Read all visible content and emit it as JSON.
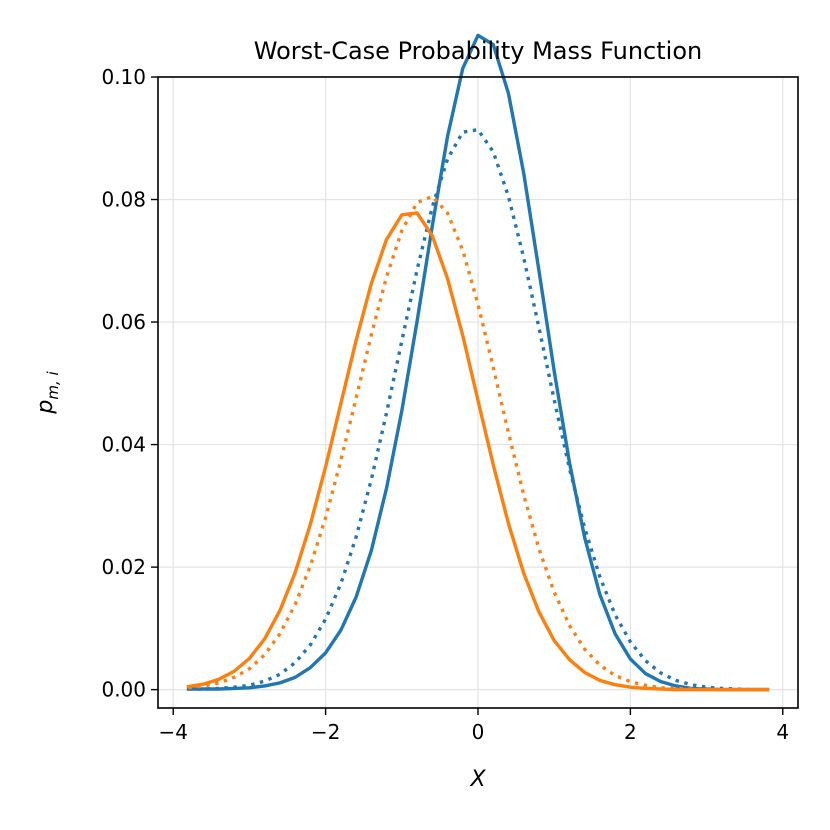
{
  "chart_data": {
    "type": "line",
    "title": "Worst-Case Probability Mass Function",
    "xlabel": "X",
    "ylabel": "p",
    "ylabel_subscript": "m, i",
    "xlim": [
      -4.2,
      4.2
    ],
    "ylim": [
      -0.003,
      0.1
    ],
    "xticks": [
      -4,
      -2,
      0,
      2,
      4
    ],
    "xtick_labels": [
      "−4",
      "−2",
      "0",
      "2",
      "4"
    ],
    "yticks": [
      0.0,
      0.02,
      0.04,
      0.06,
      0.08,
      0.1
    ],
    "ytick_labels": [
      "0.00",
      "0.02",
      "0.04",
      "0.06",
      "0.08",
      "0.10"
    ],
    "grid": true,
    "x": [
      -3.8,
      -3.6,
      -3.4,
      -3.2,
      -3.0,
      -2.8,
      -2.6,
      -2.4,
      -2.2,
      -2.0,
      -1.8,
      -1.6,
      -1.4,
      -1.2,
      -1.0,
      -0.8,
      -0.6,
      -0.4,
      -0.2,
      0.0,
      0.2,
      0.4,
      0.6,
      0.8,
      1.0,
      1.2,
      1.4,
      1.6,
      1.8,
      2.0,
      2.2,
      2.4,
      2.6,
      2.8,
      3.0,
      3.2,
      3.4,
      3.6,
      3.8
    ],
    "series": [
      {
        "name": "blue solid",
        "color": "#1f77b4",
        "style": "solid",
        "values": [
          0.0001,
          0.0001,
          0.0001,
          0.0002,
          0.0003,
          0.0006,
          0.0011,
          0.002,
          0.0036,
          0.006,
          0.0097,
          0.0151,
          0.0227,
          0.0329,
          0.0455,
          0.0601,
          0.0757,
          0.0903,
          0.1014,
          0.1068,
          0.1053,
          0.0973,
          0.0843,
          0.0684,
          0.052,
          0.0371,
          0.0248,
          0.0155,
          0.0091,
          0.005,
          0.0026,
          0.0013,
          0.0006,
          0.0002,
          0.0001,
          0.0,
          0.0,
          0.0,
          0.0
        ]
      },
      {
        "name": "blue dotted",
        "color": "#1f77b4",
        "style": "dotted",
        "values": [
          0.0001,
          0.0001,
          0.0002,
          0.0004,
          0.0007,
          0.0014,
          0.0025,
          0.0044,
          0.0073,
          0.0115,
          0.0173,
          0.0249,
          0.0343,
          0.0452,
          0.0569,
          0.0685,
          0.0788,
          0.0866,
          0.091,
          0.0914,
          0.0878,
          0.0805,
          0.0705,
          0.0591,
          0.0473,
          0.0361,
          0.0264,
          0.0184,
          0.0122,
          0.0078,
          0.0047,
          0.0027,
          0.0015,
          0.0008,
          0.0004,
          0.0002,
          0.0001,
          0.0,
          0.0
        ]
      },
      {
        "name": "orange solid",
        "color": "#ff7f0e",
        "style": "solid",
        "values": [
          0.0005,
          0.0009,
          0.0017,
          0.003,
          0.0051,
          0.0083,
          0.0129,
          0.0191,
          0.027,
          0.0364,
          0.0467,
          0.057,
          0.0663,
          0.0735,
          0.0775,
          0.0778,
          0.0741,
          0.0671,
          0.0578,
          0.0472,
          0.0367,
          0.0271,
          0.019,
          0.0127,
          0.008,
          0.0049,
          0.0028,
          0.0015,
          0.0008,
          0.0004,
          0.0002,
          0.0001,
          0.0,
          0.0,
          0.0,
          0.0,
          0.0,
          0.0,
          0.0
        ]
      },
      {
        "name": "orange dotted",
        "color": "#ff7f0e",
        "style": "dotted",
        "values": [
          0.0003,
          0.0006,
          0.0011,
          0.002,
          0.0034,
          0.0057,
          0.0091,
          0.0139,
          0.0202,
          0.0281,
          0.0374,
          0.0476,
          0.0579,
          0.0674,
          0.0749,
          0.0795,
          0.0805,
          0.0778,
          0.0717,
          0.0629,
          0.0526,
          0.0419,
          0.0318,
          0.023,
          0.0159,
          0.0105,
          0.0066,
          0.004,
          0.0023,
          0.0013,
          0.0007,
          0.0003,
          0.0002,
          0.0001,
          0.0,
          0.0,
          0.0,
          0.0,
          0.0
        ]
      }
    ]
  }
}
